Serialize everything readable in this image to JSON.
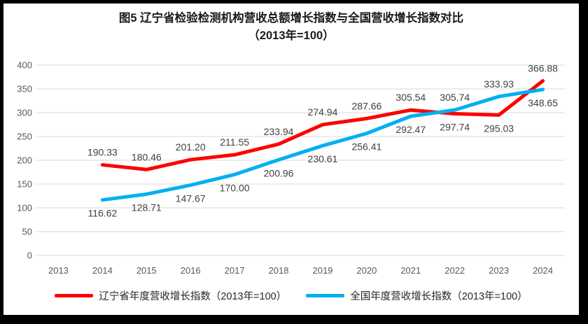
{
  "title": {
    "line1": "图5  辽宁省检验检测机构营收总额增长指数与全国营收增长指数对比",
    "line2": "（2013年=100）"
  },
  "chart_data": {
    "type": "line",
    "title": "图5 辽宁省检验检测机构营收总额增长指数与全国营收增长指数对比（2013年=100）",
    "categories": [
      "2013",
      "2014",
      "2015",
      "2016",
      "2017",
      "2018",
      "2019",
      "2020",
      "2021",
      "2022",
      "2023",
      "2024"
    ],
    "start_index": 1,
    "xlabel": "",
    "ylabel": "",
    "ylim": [
      0,
      400
    ],
    "yticks": [
      0,
      50,
      100,
      150,
      200,
      250,
      300,
      350,
      400
    ],
    "grid": true,
    "legend_position": "bottom",
    "data_labels": true,
    "series": [
      {
        "name": "辽宁省年度营收增长指数（2013年=100）",
        "color": "#FF0000",
        "values": [
          190.33,
          180.46,
          201.2,
          211.55,
          233.94,
          274.94,
          287.66,
          305.54,
          297.74,
          295.03,
          366.88
        ],
        "labels": [
          "190.33",
          "180.46",
          "201.20",
          "211.55",
          "233.94",
          "274.94",
          "287.66",
          "305.54",
          "297.74",
          "295.03",
          "366.88"
        ],
        "label_positions": [
          "above",
          "above",
          "above",
          "above",
          "above",
          "above",
          "above",
          "above",
          "below",
          "below",
          "above"
        ]
      },
      {
        "name": "全国年度营收增长指数（2013年=100）",
        "color": "#00B0F0",
        "values": [
          116.62,
          128.71,
          147.67,
          170.0,
          200.96,
          230.61,
          256.41,
          292.47,
          305.74,
          333.93,
          348.65
        ],
        "labels": [
          "116.62",
          "128.71",
          "147.67",
          "170.00",
          "200.96",
          "230.61",
          "256.41",
          "292.47",
          "305.74",
          "333.93",
          "348.65"
        ],
        "label_positions": [
          "below",
          "below",
          "below",
          "below",
          "below",
          "below",
          "below",
          "below",
          "above",
          "above",
          "below"
        ]
      }
    ]
  },
  "colors": {
    "grid": "#D9D9D9",
    "tick_text": "#595959",
    "data_label_text": "#404040",
    "frame": "#000000",
    "background": "#FFFFFF"
  }
}
